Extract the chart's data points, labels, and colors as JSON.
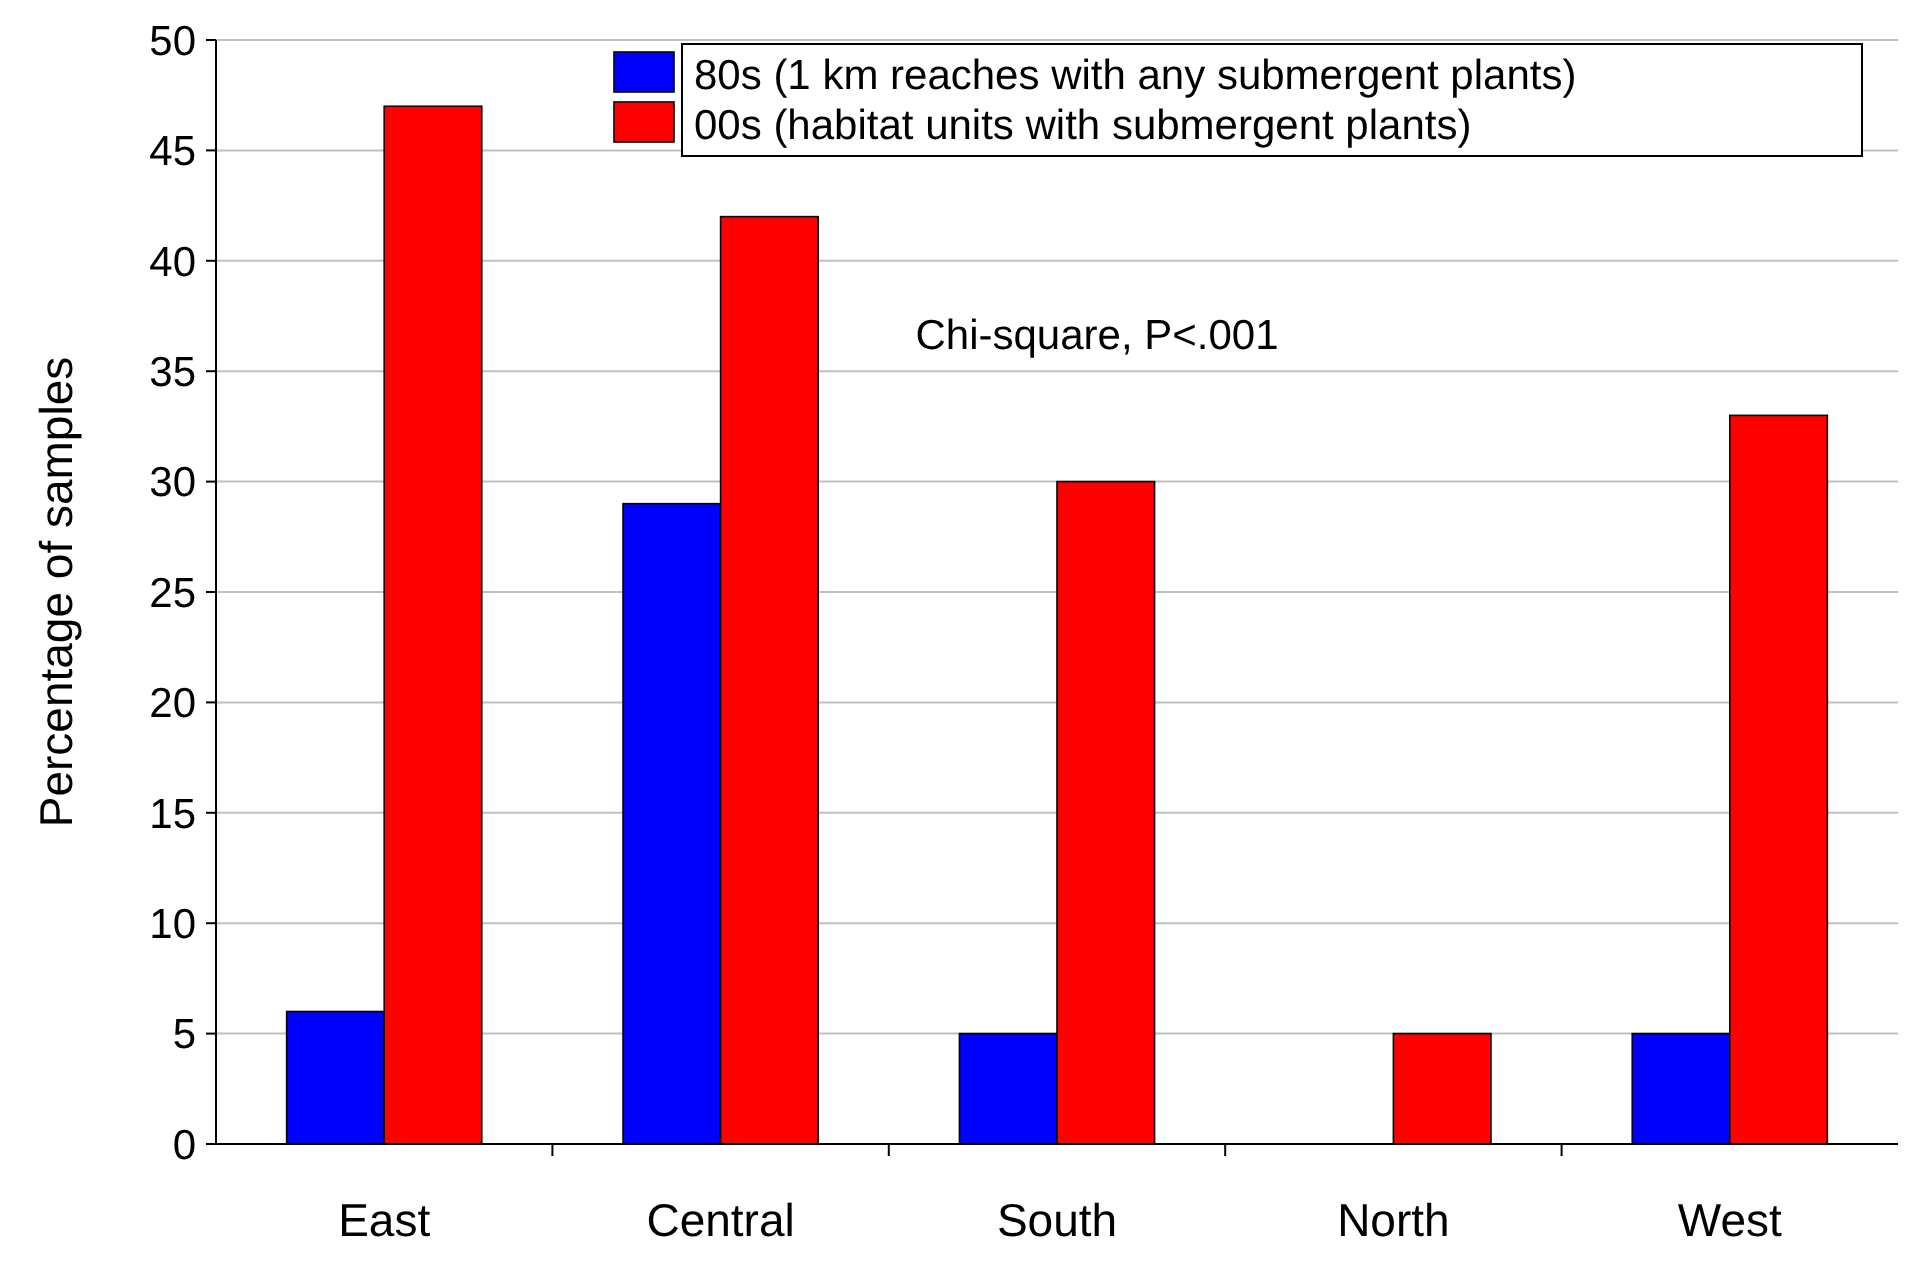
{
  "chart_data": {
    "type": "bar",
    "ylabel": "Percentage of samples",
    "categories": [
      "East",
      "Central",
      "South",
      "North",
      "West"
    ],
    "series": [
      {
        "name": "80s (1 km reaches with any submergent plants)",
        "color": "#0000ff",
        "values": [
          6,
          29,
          5,
          0,
          5
        ]
      },
      {
        "name": "00s (habitat units with submergent plants)",
        "color": "#ff0000",
        "values": [
          47,
          42,
          30,
          5,
          33
        ]
      }
    ],
    "ylim": [
      0,
      50
    ],
    "yticks": [
      0,
      5,
      10,
      15,
      20,
      25,
      30,
      35,
      40,
      45,
      50
    ],
    "grid": "y",
    "legend": "top right",
    "annotations": [
      "Chi-square, P<.001"
    ]
  }
}
